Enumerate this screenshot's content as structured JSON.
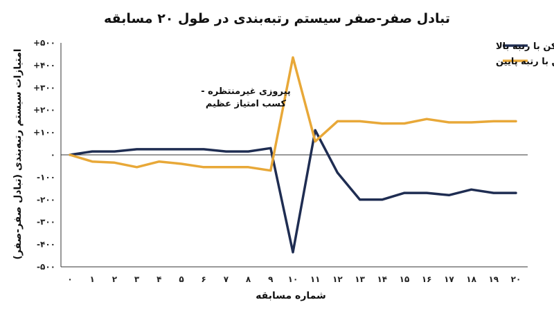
{
  "chart_data": {
    "type": "line",
    "title": "تبادل صفر-صفر سیستم رتبه‌بندی در طول ۲۰ مسابقه",
    "xlabel": "شماره مسابقه",
    "ylabel": "امتیازات سیستم رتبه‌بندی (تبادل صفر-صفر)",
    "x": [
      0,
      1,
      2,
      3,
      4,
      5,
      6,
      7,
      8,
      9,
      10,
      11,
      12,
      13,
      14,
      15,
      16,
      17,
      18,
      19,
      20
    ],
    "x_tick_labels": [
      "۰",
      "۱",
      "۲",
      "۳",
      "۴",
      "۵",
      "۶",
      "۷",
      "۸",
      "۹",
      "۱۰",
      "۱۱",
      "۱۲",
      "۱۳",
      "۱۴",
      "۱۵",
      "۱۶",
      "۱۷",
      "۱۸",
      "۱۹",
      "۲۰"
    ],
    "ylim": [
      -500,
      500
    ],
    "y_ticks": [
      500,
      400,
      300,
      200,
      100,
      0,
      -100,
      -200,
      -300,
      -400,
      -500
    ],
    "y_tick_labels": [
      "+۵۰۰",
      "+۴۰۰",
      "+۳۰۰",
      "+۲۰۰",
      "+۱۰۰",
      "۰",
      "-۱۰۰",
      "-۲۰۰",
      "-۳۰۰",
      "-۴۰۰",
      "-۵۰۰"
    ],
    "grid": false,
    "legend_position": "top-right",
    "series": [
      {
        "name": "بازیکن با رتبه بالا",
        "color": "#1f2d52",
        "values": [
          0,
          15,
          15,
          25,
          25,
          25,
          25,
          15,
          15,
          30,
          -435,
          110,
          -80,
          -200,
          -200,
          -170,
          -170,
          -180,
          -155,
          -170,
          -170
        ]
      },
      {
        "name": "بازیکن با رتبه پایین",
        "color": "#e8a838",
        "values": [
          0,
          -30,
          -35,
          -55,
          -30,
          -40,
          -55,
          -55,
          -55,
          -70,
          435,
          60,
          150,
          150,
          140,
          140,
          160,
          145,
          145,
          150,
          150
        ]
      }
    ],
    "annotations": [
      {
        "lines": [
          "پیروزی غیرمنتظره -",
          "کسب امتیاز عظیم"
        ],
        "x": 9,
        "y": 280
      }
    ]
  }
}
